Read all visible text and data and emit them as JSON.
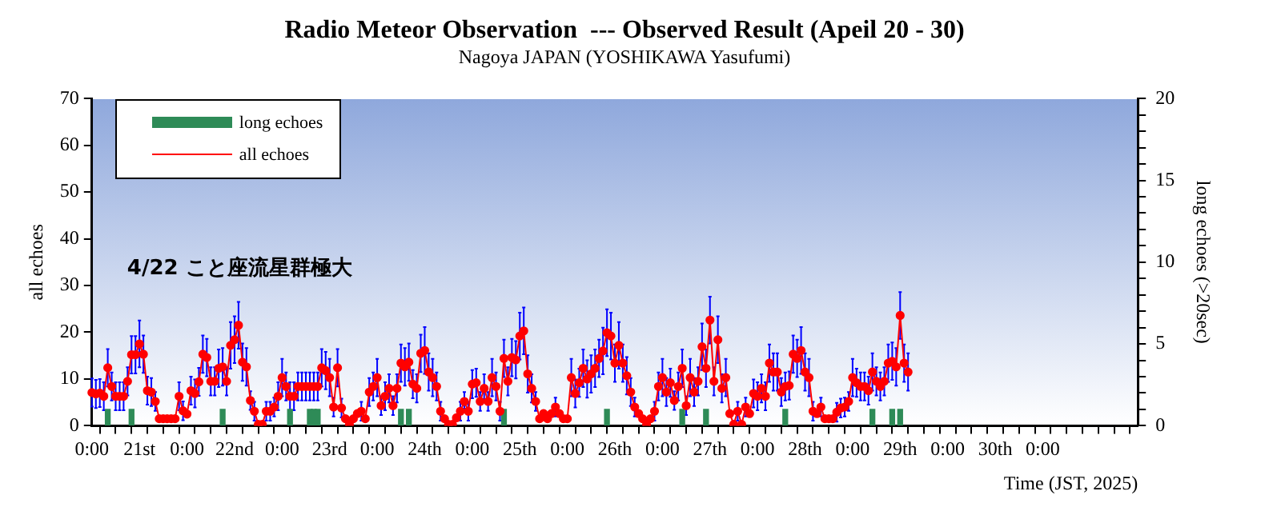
{
  "chart_data": {
    "type": "line",
    "title": "Radio Meteor Observation  --- Observed Result (Apeil 20 - 30)",
    "subtitle": "Nagoya JAPAN (YOSHIKAWA Yasufumi)",
    "xlabel": "Time (JST, 2025)",
    "ylabel": "all echoes",
    "y2label": "long echoes (>20sec)",
    "annotations": [
      "4/22 こと座流星群極大"
    ],
    "legend": "top left",
    "marker": "circle",
    "categories": [
      "0:00",
      null,
      null,
      null,
      null,
      null,
      null,
      null,
      null,
      null,
      null,
      null,
      "21st",
      null,
      null,
      null,
      null,
      null,
      null,
      null,
      null,
      null,
      null,
      null,
      "0:00",
      null,
      null,
      null,
      null,
      null,
      null,
      null,
      null,
      null,
      null,
      null,
      "22nd",
      null,
      null,
      null,
      null,
      null,
      null,
      null,
      null,
      null,
      null,
      null,
      "0:00",
      null,
      null,
      null,
      null,
      null,
      null,
      null,
      null,
      null,
      null,
      null,
      "23rd",
      null,
      null,
      null,
      null,
      null,
      null,
      null,
      null,
      null,
      null,
      null,
      "0:00",
      null,
      null,
      null,
      null,
      null,
      null,
      null,
      null,
      null,
      null,
      null,
      "24th",
      null,
      null,
      null,
      null,
      null,
      null,
      null,
      null,
      null,
      null,
      null,
      "0:00",
      null,
      null,
      null,
      null,
      null,
      null,
      null,
      null,
      null,
      null,
      null,
      "25th",
      null,
      null,
      null,
      null,
      null,
      null,
      null,
      null,
      null,
      null,
      null,
      "0:00",
      null,
      null,
      null,
      null,
      null,
      null,
      null,
      null,
      null,
      null,
      null,
      "26th",
      null,
      null,
      null,
      null,
      null,
      null,
      null,
      null,
      null,
      null,
      null,
      "0:00",
      null,
      null,
      null,
      null,
      null,
      null,
      null,
      null,
      null,
      null,
      null,
      "27th",
      null,
      null,
      null,
      null,
      null,
      null,
      null,
      null,
      null,
      null,
      null,
      "0:00",
      null,
      null,
      null,
      null,
      null,
      null,
      null,
      null,
      null,
      null,
      null,
      "28th",
      null,
      null,
      null,
      null,
      null,
      null,
      null,
      null,
      null,
      null,
      null,
      "0:00",
      null,
      null,
      null,
      null,
      null,
      null,
      null,
      null,
      null,
      null,
      null,
      "29th",
      null,
      null,
      null,
      null,
      null,
      null,
      null,
      null,
      null,
      null,
      null,
      "0:00",
      null,
      null,
      null,
      null,
      null,
      null,
      null,
      null,
      null,
      null,
      null,
      "30th",
      null,
      null,
      null,
      null,
      null,
      null,
      null,
      null,
      null,
      null,
      null,
      "0:00",
      null,
      null,
      null,
      null,
      null,
      null,
      null,
      null,
      null,
      null,
      null,
      null,
      null,
      null,
      null,
      null,
      null,
      null,
      null,
      null,
      null,
      null,
      null,
      null
    ],
    "ylim": [
      0,
      70
    ],
    "yticks": [
      0,
      10,
      20,
      30,
      40,
      50,
      60,
      70
    ],
    "y2lim": [
      0,
      20
    ],
    "y2ticks": [
      0,
      {
        "value": 1,
        "label": null
      },
      {
        "value": 2,
        "label": null
      },
      {
        "value": 3,
        "label": null
      },
      {
        "value": 4,
        "label": null
      },
      5,
      {
        "value": 6,
        "label": null
      },
      {
        "value": 7,
        "label": null
      },
      {
        "value": 8,
        "label": null
      },
      {
        "value": 9,
        "label": null
      },
      10,
      {
        "value": 11,
        "label": null
      },
      {
        "value": 12,
        "label": null
      },
      {
        "value": 13,
        "label": null
      },
      {
        "value": 14,
        "label": null
      },
      15,
      {
        "value": 16,
        "label": null
      },
      {
        "value": 17,
        "label": null
      },
      {
        "value": 18,
        "label": null
      },
      {
        "value": 19,
        "label": null
      },
      20
    ],
    "series": [
      {
        "name": "long echoes",
        "type": "bar",
        "axis": "y2",
        "color": "#2e8b57",
        "values": [
          null,
          null,
          null,
          null,
          1,
          null,
          null,
          null,
          null,
          null,
          1,
          null,
          null,
          null,
          null,
          null,
          null,
          null,
          null,
          null,
          null,
          null,
          null,
          null,
          null,
          null,
          null,
          null,
          null,
          null,
          null,
          null,
          null,
          1,
          null,
          null,
          null,
          null,
          null,
          null,
          null,
          null,
          null,
          null,
          null,
          null,
          null,
          null,
          null,
          null,
          1,
          null,
          null,
          null,
          null,
          1,
          1,
          1,
          null,
          null,
          null,
          null,
          null,
          null,
          null,
          null,
          null,
          null,
          null,
          null,
          null,
          null,
          null,
          null,
          null,
          null,
          null,
          null,
          1,
          null,
          1,
          null,
          null,
          null,
          null,
          null,
          null,
          null,
          null,
          null,
          null,
          null,
          null,
          null,
          null,
          null,
          null,
          null,
          null,
          null,
          null,
          null,
          null,
          null,
          1,
          null,
          null,
          null,
          null,
          null,
          null,
          null,
          null,
          null,
          null,
          null,
          null,
          null,
          null,
          null,
          null,
          null,
          null,
          null,
          null,
          null,
          null,
          null,
          null,
          null,
          1,
          null,
          null,
          null,
          null,
          null,
          null,
          null,
          null,
          null,
          null,
          null,
          null,
          null,
          null,
          null,
          null,
          null,
          null,
          1,
          null,
          null,
          null,
          null,
          null,
          1,
          null,
          null,
          null,
          null,
          null,
          null,
          null,
          null,
          null,
          null,
          null,
          null,
          null,
          null,
          null,
          null,
          null,
          null,
          null,
          1,
          null,
          null,
          null,
          null,
          null,
          null,
          null,
          null,
          null,
          null,
          null,
          null,
          null,
          null,
          null,
          null,
          null,
          null,
          null,
          null,
          null,
          1,
          null,
          null,
          null,
          null,
          1,
          null,
          1,
          null,
          null,
          null,
          null,
          null,
          null,
          null,
          null,
          null,
          null,
          null,
          null,
          null,
          null,
          null,
          null,
          null,
          null,
          null,
          null,
          null,
          null,
          null,
          null,
          null,
          null,
          null,
          null,
          null,
          null,
          null,
          null,
          null,
          null,
          null,
          null,
          null,
          null,
          null,
          null,
          null,
          null,
          null,
          null,
          null,
          null,
          null,
          null,
          null,
          null,
          null,
          null,
          null,
          null,
          null,
          null,
          null,
          null,
          null,
          null
        ]
      },
      {
        "name": "all echoes",
        "type": "line",
        "color": "#ff0000",
        "values": [
          7.1,
          6.8,
          7,
          6.3,
          12.4,
          8.4,
          6.3,
          6.3,
          6.3,
          9.5,
          15.2,
          15.2,
          17.5,
          15.3,
          7.5,
          7.2,
          5.2,
          1.5,
          1.5,
          1.5,
          1.5,
          1.5,
          6.3,
          3.2,
          2.5,
          7.5,
          6.9,
          9.4,
          15.3,
          14.6,
          9.5,
          9.5,
          12.3,
          12.6,
          9.5,
          17.2,
          18.4,
          21.5,
          13.6,
          12.6,
          5.4,
          3.1,
          0.3,
          0.3,
          3.1,
          3.1,
          4,
          6.3,
          10.3,
          8.4,
          6.3,
          6.3,
          8.4,
          8.4,
          8.4,
          8.4,
          8.4,
          8.4,
          12.4,
          11.8,
          10.3,
          4,
          12.4,
          3.8,
          1.5,
          0.3,
          1.5,
          2.6,
          3.1,
          1.5,
          7.2,
          8.4,
          10.3,
          4.3,
          6.3,
          8,
          4.3,
          8,
          13.4,
          12.6,
          13.6,
          8.9,
          8,
          15.5,
          16.1,
          11.5,
          10.3,
          8.4,
          3.1,
          1.5,
          0.3,
          0.3,
          1.7,
          3.1,
          5.2,
          3.1,
          8.9,
          9.2,
          5.2,
          8,
          5.2,
          10.3,
          8.4,
          3.1,
          14.4,
          9.5,
          14.6,
          14.1,
          19.2,
          20.3,
          11.1,
          8,
          5.2,
          1.5,
          2.6,
          1.5,
          2.6,
          4,
          2.6,
          1.5,
          1.5,
          10.3,
          6.9,
          9.2,
          12.3,
          10,
          11.1,
          12.3,
          14.4,
          16,
          19.9,
          19.2,
          13.4,
          17.2,
          13.4,
          10.7,
          7.2,
          4,
          2.6,
          1.5,
          0.3,
          1.5,
          3.1,
          8.4,
          10.3,
          7.2,
          9.2,
          5.4,
          8.4,
          12.3,
          4.3,
          10.3,
          7.2,
          9.5,
          16.9,
          12.3,
          22.6,
          9.5,
          18.4,
          8,
          10.3,
          2.6,
          0.3,
          3.1,
          0.3,
          4,
          2.6,
          6.9,
          6.3,
          8,
          6.3,
          13.4,
          11.5,
          11.5,
          7.2,
          8.4,
          8.6,
          15.3,
          14.4,
          16.1,
          11.5,
          10.3,
          3.1,
          2.6,
          4,
          1.5,
          1.5,
          1.5,
          2.9,
          3.8,
          4,
          5.2,
          10.3,
          9.2,
          8.4,
          8.4,
          7.5,
          11.5,
          9.5,
          8.4,
          9.5,
          13.4,
          13.8,
          12.6,
          23.6,
          13.4,
          11.5,
          null,
          null,
          null,
          null,
          null,
          null,
          null,
          null,
          null,
          null,
          null,
          null,
          null,
          null,
          null,
          null,
          null,
          null,
          null,
          null,
          null,
          null,
          null,
          null,
          null,
          null,
          null,
          null,
          null,
          null,
          null,
          null,
          null,
          null,
          null,
          null,
          null,
          null,
          null,
          null,
          null,
          null,
          null,
          null,
          null,
          null,
          null,
          null,
          null,
          null,
          null,
          null,
          null,
          null,
          null,
          null,
          null,
          null
        ],
        "errors": [
          3,
          3,
          3,
          3,
          4,
          3,
          3,
          3,
          3,
          3,
          4,
          4,
          5,
          4,
          3,
          3,
          2,
          null,
          null,
          null,
          null,
          null,
          3,
          2,
          null,
          3,
          3,
          3,
          4,
          4,
          3,
          3,
          4,
          4,
          3,
          5,
          5,
          5,
          4,
          4,
          2,
          2,
          null,
          null,
          2,
          2,
          2,
          3,
          4,
          3,
          3,
          3,
          3,
          3,
          3,
          3,
          3,
          3,
          4,
          4,
          4,
          2,
          4,
          2,
          null,
          null,
          null,
          null,
          2,
          null,
          3,
          3,
          4,
          2,
          3,
          3,
          2,
          3,
          4,
          4,
          4,
          3,
          3,
          4,
          5,
          4,
          4,
          3,
          2,
          null,
          null,
          null,
          null,
          2,
          2,
          2,
          3,
          3,
          2,
          3,
          2,
          4,
          3,
          2,
          4,
          3,
          4,
          4,
          5,
          5,
          4,
          3,
          2,
          null,
          null,
          null,
          null,
          2,
          null,
          null,
          null,
          4,
          3,
          3,
          4,
          4,
          4,
          4,
          4,
          5,
          5,
          5,
          4,
          5,
          4,
          4,
          3,
          2,
          null,
          null,
          null,
          null,
          2,
          3,
          4,
          3,
          3,
          2,
          3,
          4,
          2,
          4,
          3,
          3,
          5,
          4,
          5,
          3,
          5,
          3,
          4,
          null,
          null,
          2,
          null,
          2,
          null,
          3,
          3,
          3,
          3,
          4,
          4,
          4,
          3,
          3,
          3,
          4,
          4,
          5,
          4,
          4,
          2,
          null,
          2,
          null,
          null,
          null,
          2,
          2,
          2,
          2,
          4,
          3,
          3,
          3,
          3,
          4,
          3,
          3,
          3,
          4,
          4,
          4,
          5,
          4,
          4,
          null,
          null,
          null,
          null,
          null,
          null,
          null,
          null,
          null,
          null,
          null,
          null,
          null,
          null,
          null,
          null,
          null,
          null,
          null,
          null,
          null,
          null,
          null,
          null,
          null,
          null,
          null,
          null,
          null,
          null,
          null,
          null,
          null,
          null,
          null,
          null,
          null,
          null,
          null,
          null,
          null,
          null,
          null,
          null,
          null,
          null,
          null,
          null,
          null,
          null,
          null,
          null,
          null,
          null,
          null,
          null,
          null,
          null
        ]
      }
    ]
  }
}
